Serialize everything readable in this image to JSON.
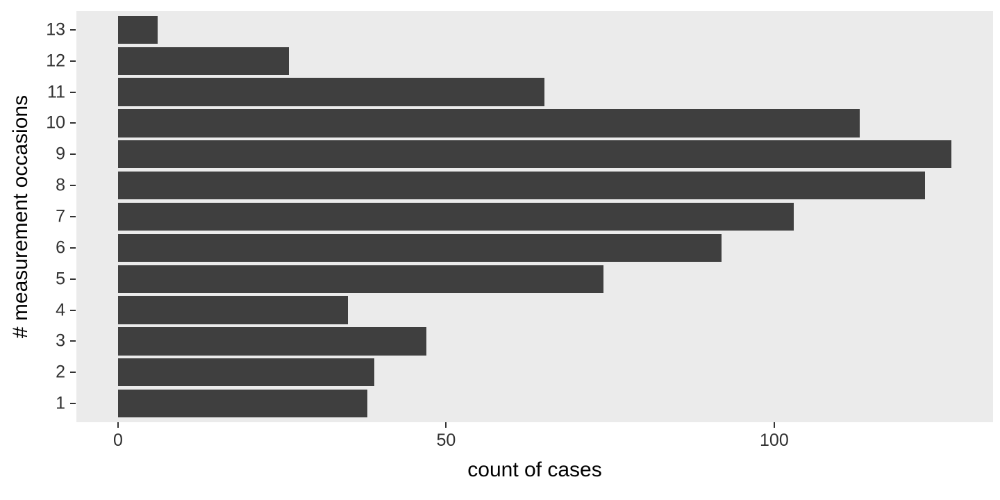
{
  "chart_data": {
    "type": "bar",
    "orientation": "horizontal",
    "title": "",
    "xlabel": "count of cases",
    "ylabel": "# measurement occasions",
    "categories": [
      "1",
      "2",
      "3",
      "4",
      "5",
      "6",
      "7",
      "8",
      "9",
      "10",
      "11",
      "12",
      "13"
    ],
    "values": [
      38,
      39,
      47,
      35,
      74,
      92,
      103,
      123,
      127,
      113,
      65,
      26,
      6
    ],
    "category_order_top_to_bottom": [
      "13",
      "12",
      "11",
      "10",
      "9",
      "8",
      "7",
      "6",
      "5",
      "4",
      "3",
      "2",
      "1"
    ],
    "x_ticks": [
      0,
      50,
      100
    ],
    "x_tick_labels": [
      "0",
      "50",
      "100"
    ],
    "xlim": [
      -6.35,
      133.35
    ],
    "grid": "off",
    "legend": "none",
    "bar_color": "#3F3F3F",
    "panel_bg": "#EBEBEB",
    "figure_bg": "#FFFFFF",
    "tick_color": "#333333",
    "tick_label_color": "#303030",
    "axis_title_color": "#000000"
  }
}
